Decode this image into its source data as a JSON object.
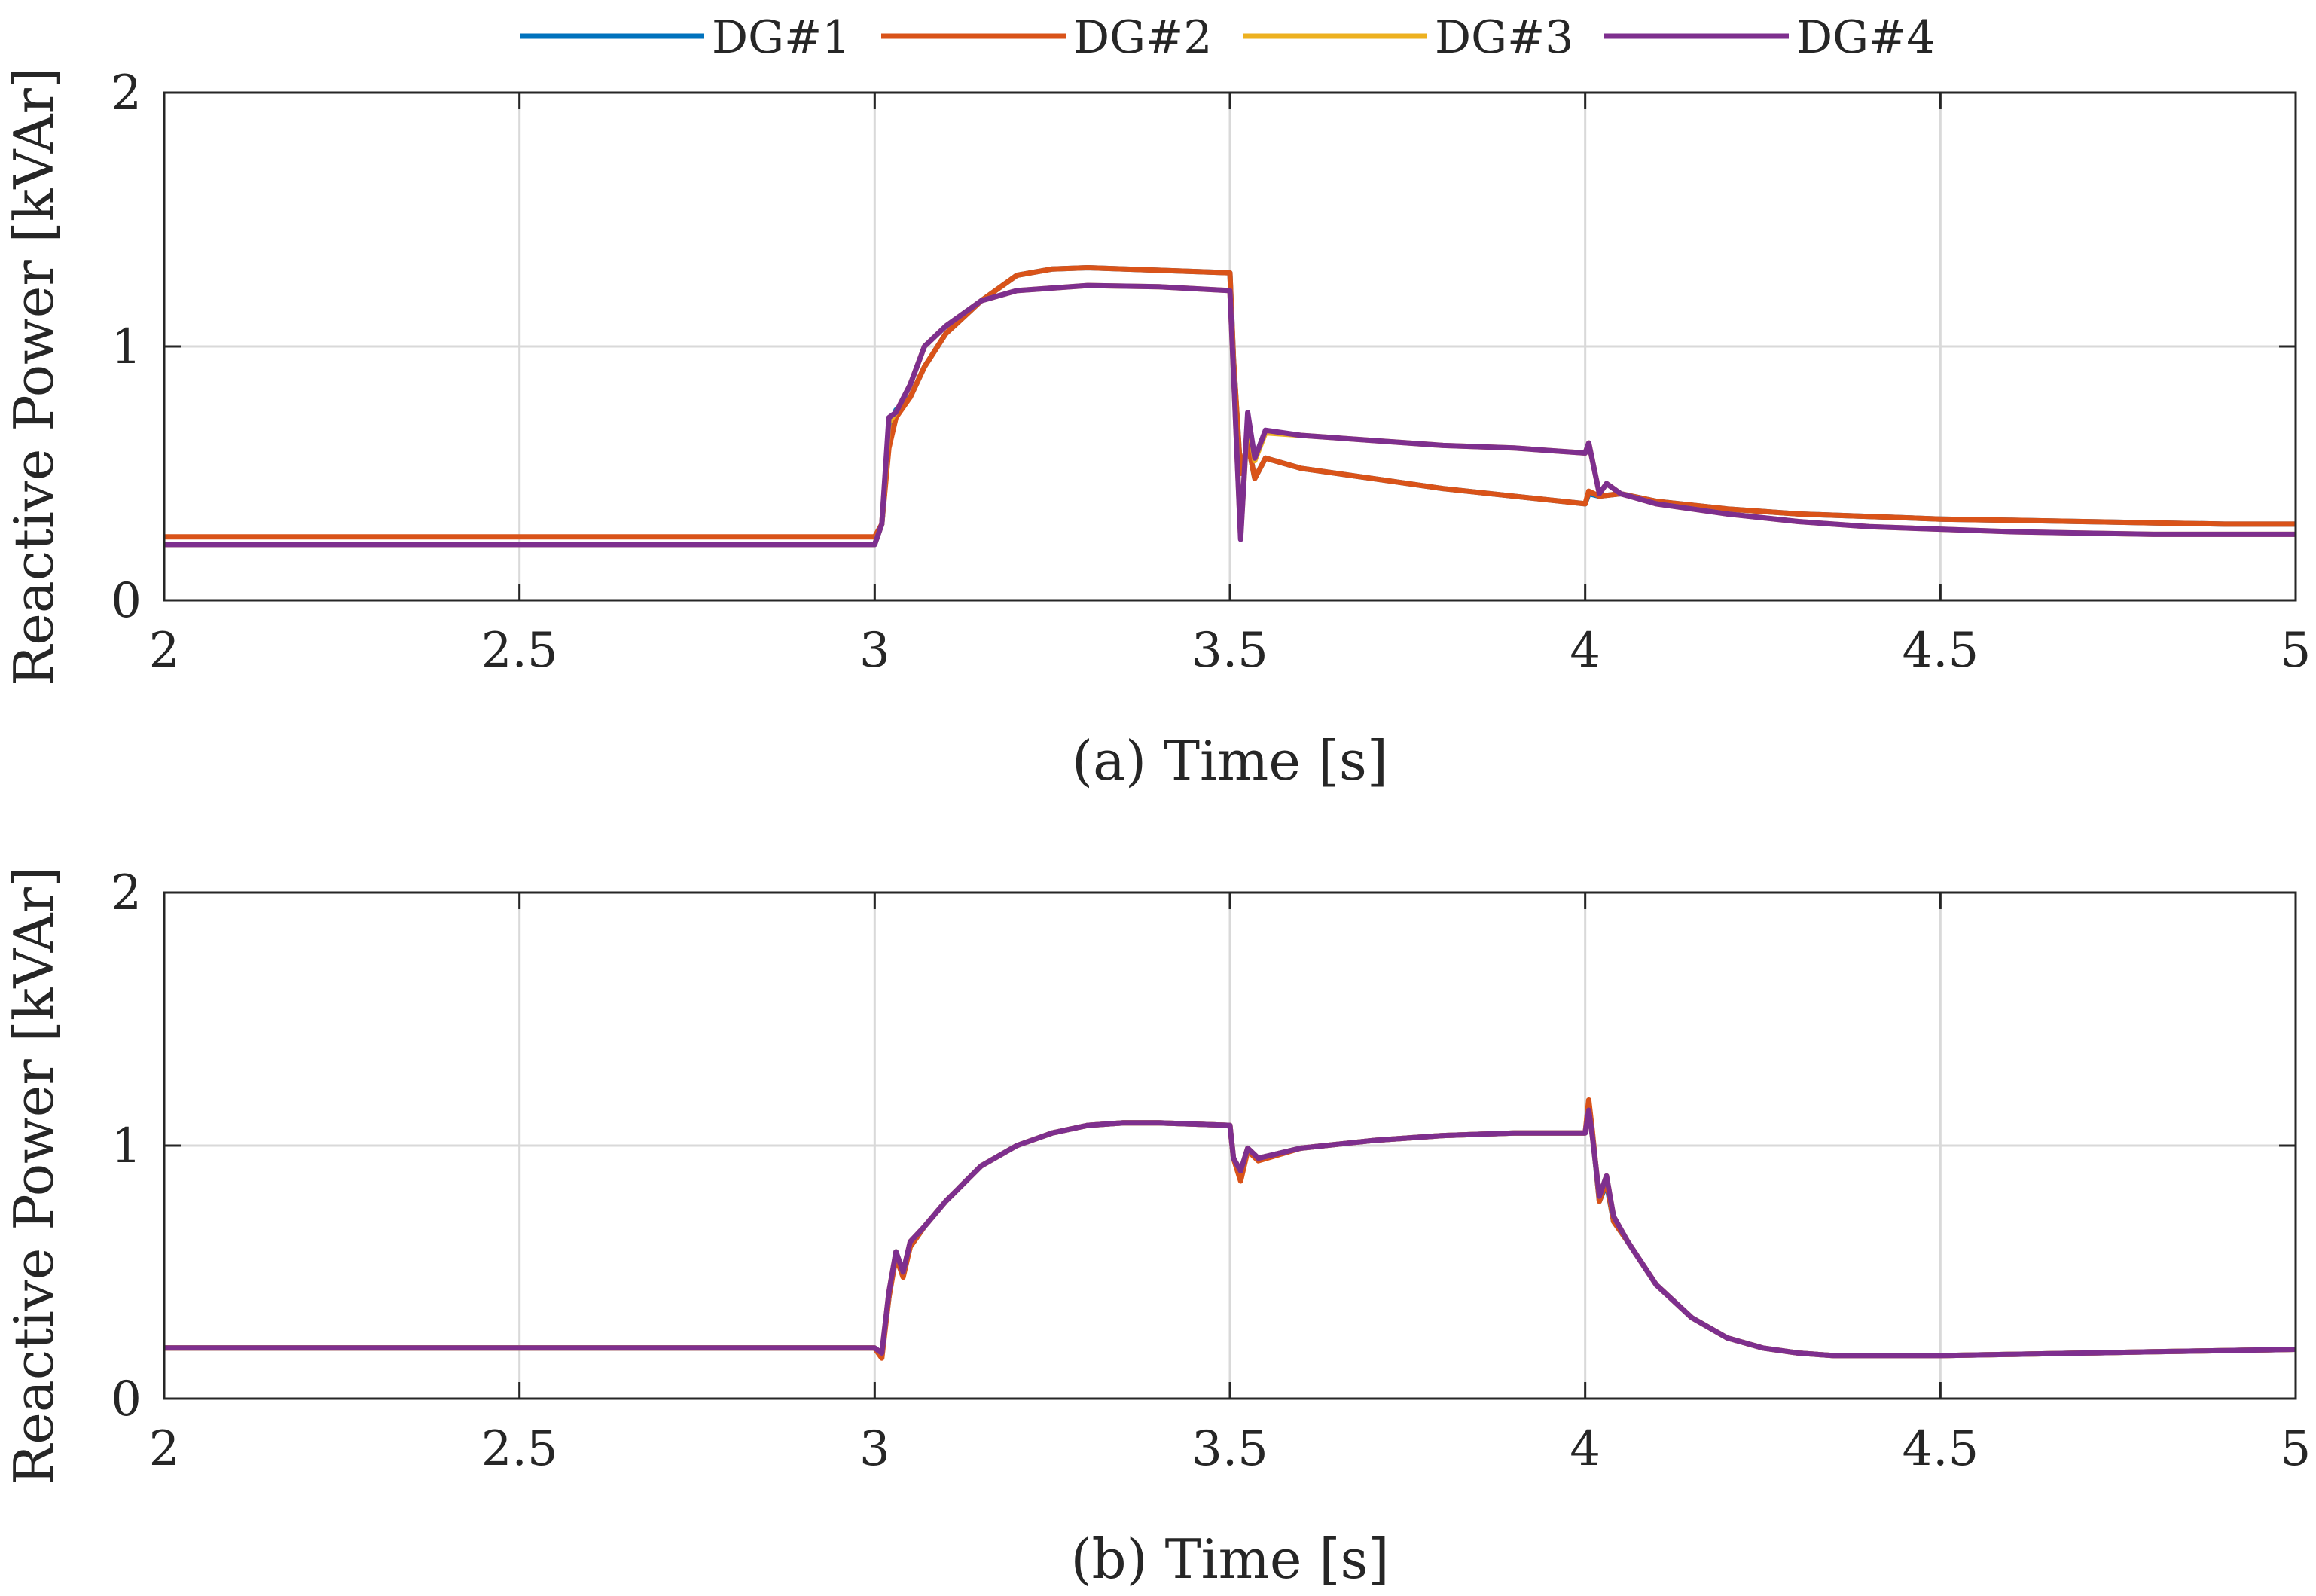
{
  "legend": {
    "entries": [
      {
        "label": "DG#1",
        "color": "#0072BD"
      },
      {
        "label": "DG#2",
        "color": "#D95319"
      },
      {
        "label": "DG#3",
        "color": "#EDB120"
      },
      {
        "label": "DG#4",
        "color": "#7E2F8E"
      }
    ]
  },
  "chart_data": [
    {
      "type": "line",
      "panel": "a",
      "xlabel": "(a) Time [s]",
      "ylabel": "Reactive Power [kVAr]",
      "xlim": [
        2,
        5
      ],
      "ylim": [
        0,
        2
      ],
      "xticks": [
        2,
        2.5,
        3,
        3.5,
        4,
        4.5,
        5
      ],
      "xtick_labels": [
        "2",
        "2.5",
        "3",
        "3.5",
        "4",
        "4.5",
        "5"
      ],
      "yticks": [
        0,
        1,
        2
      ],
      "ytick_labels": [
        "0",
        "1",
        "2"
      ],
      "grid": true,
      "series": [
        {
          "name": "DG#1",
          "color": "#0072BD",
          "x": [
            2,
            3.0,
            3.01,
            3.02,
            3.03,
            3.05,
            3.07,
            3.1,
            3.15,
            3.2,
            3.25,
            3.3,
            3.4,
            3.5,
            3.505,
            3.515,
            3.525,
            3.535,
            3.55,
            3.6,
            3.7,
            3.8,
            3.9,
            4.0,
            4.005,
            4.02,
            4.05,
            4.1,
            4.2,
            4.3,
            4.4,
            4.5,
            4.6,
            4.7,
            4.8,
            4.9,
            5.0
          ],
          "y": [
            0.22,
            0.22,
            0.3,
            0.62,
            0.75,
            0.8,
            0.92,
            1.05,
            1.18,
            1.28,
            1.305,
            1.31,
            1.3,
            1.29,
            0.95,
            0.5,
            0.62,
            0.48,
            0.56,
            0.52,
            0.48,
            0.44,
            0.41,
            0.38,
            0.42,
            0.41,
            0.42,
            0.39,
            0.36,
            0.34,
            0.33,
            0.32,
            0.315,
            0.31,
            0.305,
            0.3,
            0.3
          ]
        },
        {
          "name": "DG#2",
          "color": "#D95319",
          "x": [
            2,
            3.0,
            3.01,
            3.02,
            3.03,
            3.05,
            3.07,
            3.1,
            3.15,
            3.2,
            3.25,
            3.3,
            3.4,
            3.5,
            3.505,
            3.515,
            3.525,
            3.535,
            3.55,
            3.6,
            3.7,
            3.8,
            3.9,
            4.0,
            4.005,
            4.02,
            4.05,
            4.1,
            4.2,
            4.3,
            4.4,
            4.5,
            4.6,
            4.7,
            4.8,
            4.9,
            5.0
          ],
          "y": [
            0.25,
            0.25,
            0.3,
            0.6,
            0.72,
            0.8,
            0.92,
            1.05,
            1.18,
            1.28,
            1.305,
            1.31,
            1.3,
            1.29,
            0.95,
            0.5,
            0.62,
            0.48,
            0.56,
            0.52,
            0.48,
            0.44,
            0.41,
            0.38,
            0.43,
            0.41,
            0.42,
            0.39,
            0.36,
            0.34,
            0.33,
            0.32,
            0.315,
            0.31,
            0.305,
            0.3,
            0.3
          ]
        },
        {
          "name": "DG#3",
          "color": "#EDB120",
          "x": [
            2,
            3.0,
            3.01,
            3.02,
            3.03,
            3.05,
            3.07,
            3.1,
            3.15,
            3.2,
            3.3,
            3.4,
            3.5,
            3.505,
            3.515,
            3.525,
            3.535,
            3.55,
            3.6,
            3.7,
            3.8,
            3.9,
            4.0,
            4.005,
            4.02,
            4.03,
            4.05,
            4.1,
            4.2,
            4.3,
            4.4,
            4.5,
            4.6,
            4.7,
            4.8,
            4.9,
            5.0
          ],
          "y": [
            0.22,
            0.22,
            0.3,
            0.7,
            0.74,
            0.85,
            1.0,
            1.08,
            1.18,
            1.22,
            1.24,
            1.235,
            1.22,
            0.9,
            0.25,
            0.72,
            0.55,
            0.66,
            0.65,
            0.63,
            0.61,
            0.6,
            0.58,
            0.62,
            0.42,
            0.46,
            0.42,
            0.38,
            0.34,
            0.31,
            0.29,
            0.28,
            0.27,
            0.265,
            0.26,
            0.26,
            0.26
          ]
        },
        {
          "name": "DG#4",
          "color": "#7E2F8E",
          "x": [
            2,
            3.0,
            3.01,
            3.02,
            3.03,
            3.05,
            3.07,
            3.1,
            3.15,
            3.2,
            3.3,
            3.4,
            3.5,
            3.505,
            3.515,
            3.525,
            3.535,
            3.55,
            3.6,
            3.7,
            3.8,
            3.9,
            4.0,
            4.005,
            4.02,
            4.03,
            4.05,
            4.1,
            4.2,
            4.3,
            4.4,
            4.5,
            4.6,
            4.7,
            4.8,
            4.9,
            5.0
          ],
          "y": [
            0.22,
            0.22,
            0.3,
            0.72,
            0.74,
            0.85,
            1.0,
            1.08,
            1.18,
            1.22,
            1.24,
            1.235,
            1.22,
            0.9,
            0.24,
            0.74,
            0.56,
            0.67,
            0.65,
            0.63,
            0.61,
            0.6,
            0.58,
            0.62,
            0.42,
            0.46,
            0.42,
            0.38,
            0.34,
            0.31,
            0.29,
            0.28,
            0.27,
            0.265,
            0.26,
            0.26,
            0.26
          ]
        }
      ]
    },
    {
      "type": "line",
      "panel": "b",
      "xlabel": "(b) Time [s]",
      "ylabel": "Reactive Power [kVAr]",
      "xlim": [
        2,
        5
      ],
      "ylim": [
        0,
        2
      ],
      "xticks": [
        2,
        2.5,
        3,
        3.5,
        4,
        4.5,
        5
      ],
      "xtick_labels": [
        "2",
        "2.5",
        "3",
        "3.5",
        "4",
        "4.5",
        "5"
      ],
      "yticks": [
        0,
        1,
        2
      ],
      "ytick_labels": [
        "0",
        "1",
        "2"
      ],
      "grid": true,
      "series": [
        {
          "name": "DG#1",
          "color": "#0072BD",
          "x": [
            2,
            3.0,
            3.01,
            3.02,
            3.03,
            3.04,
            3.05,
            3.07,
            3.1,
            3.15,
            3.2,
            3.25,
            3.3,
            3.35,
            3.4,
            3.5,
            3.505,
            3.515,
            3.525,
            3.54,
            3.6,
            3.7,
            3.8,
            3.9,
            4.0,
            4.005,
            4.01,
            4.02,
            4.03,
            4.04,
            4.06,
            4.1,
            4.15,
            4.2,
            4.25,
            4.3,
            4.35,
            4.4,
            4.5,
            4.6,
            4.7,
            4.8,
            4.9,
            5.0
          ],
          "y": [
            0.2,
            0.2,
            0.18,
            0.4,
            0.58,
            0.5,
            0.6,
            0.68,
            0.78,
            0.92,
            1.0,
            1.05,
            1.08,
            1.09,
            1.09,
            1.08,
            0.95,
            0.88,
            0.98,
            0.95,
            0.99,
            1.02,
            1.04,
            1.05,
            1.05,
            1.15,
            1.05,
            0.78,
            0.85,
            0.7,
            0.62,
            0.45,
            0.32,
            0.24,
            0.2,
            0.18,
            0.17,
            0.17,
            0.17,
            0.175,
            0.18,
            0.185,
            0.19,
            0.195
          ]
        },
        {
          "name": "DG#2",
          "color": "#D95319",
          "x": [
            2,
            3.0,
            3.01,
            3.02,
            3.03,
            3.04,
            3.05,
            3.07,
            3.1,
            3.15,
            3.2,
            3.25,
            3.3,
            3.35,
            3.4,
            3.5,
            3.505,
            3.515,
            3.525,
            3.54,
            3.6,
            3.7,
            3.8,
            3.9,
            4.0,
            4.005,
            4.01,
            4.02,
            4.03,
            4.04,
            4.06,
            4.1,
            4.15,
            4.2,
            4.25,
            4.3,
            4.35,
            4.4,
            4.5,
            4.6,
            4.7,
            4.8,
            4.9,
            5.0
          ],
          "y": [
            0.2,
            0.2,
            0.16,
            0.4,
            0.56,
            0.48,
            0.6,
            0.68,
            0.78,
            0.92,
            1.0,
            1.05,
            1.08,
            1.09,
            1.09,
            1.08,
            0.95,
            0.86,
            0.98,
            0.94,
            0.99,
            1.02,
            1.04,
            1.05,
            1.05,
            1.18,
            1.06,
            0.78,
            0.86,
            0.7,
            0.62,
            0.45,
            0.32,
            0.24,
            0.2,
            0.18,
            0.17,
            0.17,
            0.17,
            0.175,
            0.18,
            0.185,
            0.19,
            0.195
          ]
        },
        {
          "name": "DG#3",
          "color": "#EDB120",
          "x": [
            2,
            3.0,
            3.01,
            3.02,
            3.03,
            3.04,
            3.05,
            3.07,
            3.1,
            3.15,
            3.2,
            3.25,
            3.3,
            3.35,
            3.4,
            3.5,
            3.505,
            3.515,
            3.525,
            3.54,
            3.6,
            3.7,
            3.8,
            3.9,
            4.0,
            4.005,
            4.01,
            4.02,
            4.03,
            4.04,
            4.06,
            4.1,
            4.15,
            4.2,
            4.25,
            4.3,
            4.35,
            4.4,
            4.5,
            4.6,
            4.7,
            4.8,
            4.9,
            5.0
          ],
          "y": [
            0.2,
            0.2,
            0.18,
            0.42,
            0.58,
            0.5,
            0.62,
            0.68,
            0.78,
            0.92,
            1.0,
            1.05,
            1.08,
            1.09,
            1.09,
            1.08,
            0.95,
            0.9,
            0.99,
            0.95,
            0.99,
            1.02,
            1.04,
            1.05,
            1.05,
            1.14,
            1.04,
            0.8,
            0.88,
            0.72,
            0.62,
            0.45,
            0.32,
            0.24,
            0.2,
            0.18,
            0.17,
            0.17,
            0.17,
            0.175,
            0.18,
            0.185,
            0.19,
            0.195
          ]
        },
        {
          "name": "DG#4",
          "color": "#7E2F8E",
          "x": [
            2,
            3.0,
            3.01,
            3.02,
            3.03,
            3.04,
            3.05,
            3.07,
            3.1,
            3.15,
            3.2,
            3.25,
            3.3,
            3.35,
            3.4,
            3.5,
            3.505,
            3.515,
            3.525,
            3.54,
            3.6,
            3.7,
            3.8,
            3.9,
            4.0,
            4.005,
            4.01,
            4.02,
            4.03,
            4.04,
            4.06,
            4.1,
            4.15,
            4.2,
            4.25,
            4.3,
            4.35,
            4.4,
            4.5,
            4.6,
            4.7,
            4.8,
            4.9,
            5.0
          ],
          "y": [
            0.2,
            0.2,
            0.18,
            0.42,
            0.58,
            0.5,
            0.62,
            0.68,
            0.78,
            0.92,
            1.0,
            1.05,
            1.08,
            1.09,
            1.09,
            1.08,
            0.95,
            0.9,
            0.99,
            0.95,
            0.99,
            1.02,
            1.04,
            1.05,
            1.05,
            1.14,
            1.04,
            0.8,
            0.88,
            0.72,
            0.62,
            0.45,
            0.32,
            0.24,
            0.2,
            0.18,
            0.17,
            0.17,
            0.17,
            0.175,
            0.18,
            0.185,
            0.19,
            0.195
          ]
        }
      ]
    }
  ]
}
